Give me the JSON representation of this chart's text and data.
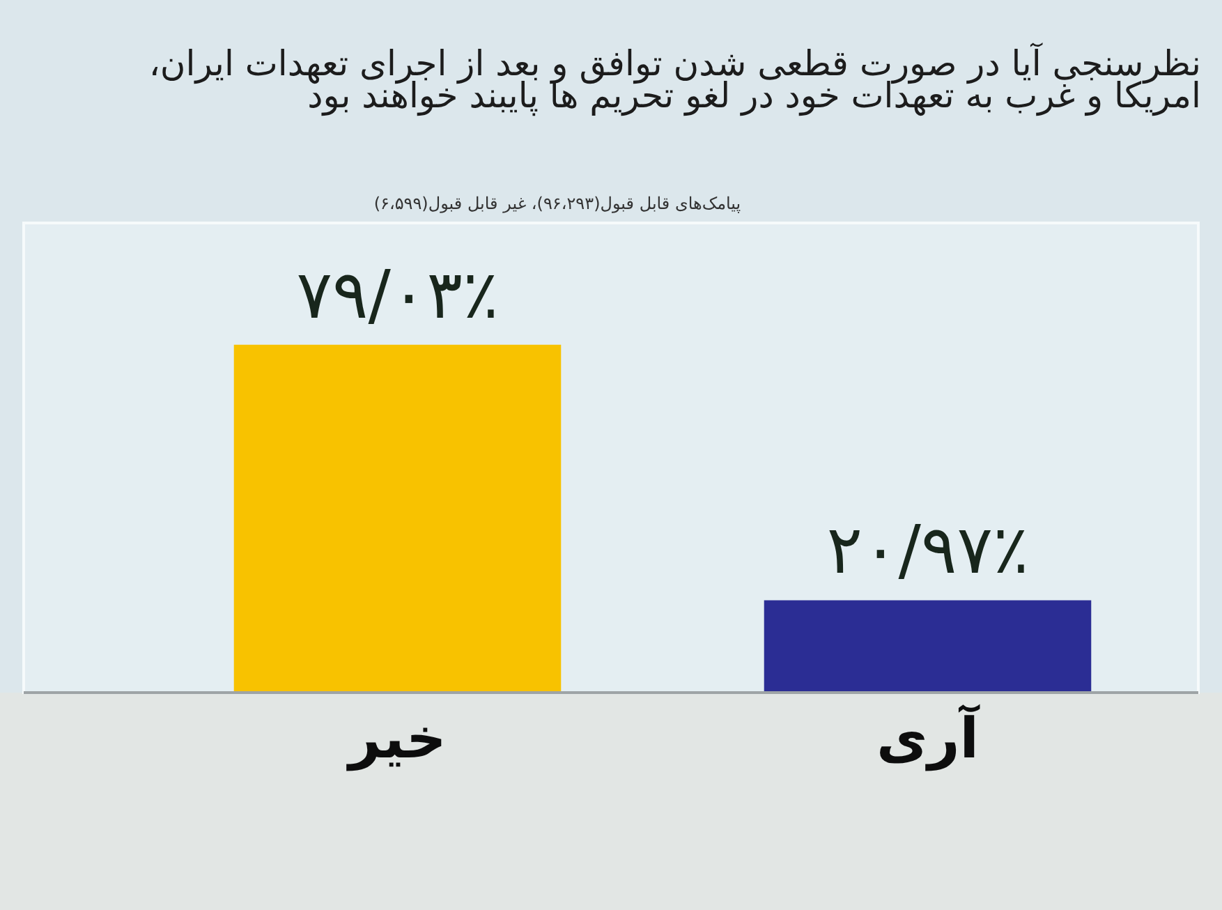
{
  "chart_data": {
    "type": "bar",
    "title": "نظرسنجی آیا در صورت قطعی شدن توافق و بعد از اجرای تعهدات ایران، امریکا و غرب به تعهدات خود در لغو تحریم ها پایبند خواهند بود",
    "subtitle": "پیامک‌های قابل قبول(۹۶،۲۹۳)، غیر قابل قبول(۶،۵۹۹)",
    "categories": [
      "خیر",
      "آری"
    ],
    "values": [
      79.03,
      20.97
    ],
    "colors": [
      "#f8c200",
      "#2b2d94"
    ],
    "value_labels": [
      "۷۹/۰۳٪",
      "۲۰/۹۷٪"
    ],
    "tick_labels": "x"
  }
}
